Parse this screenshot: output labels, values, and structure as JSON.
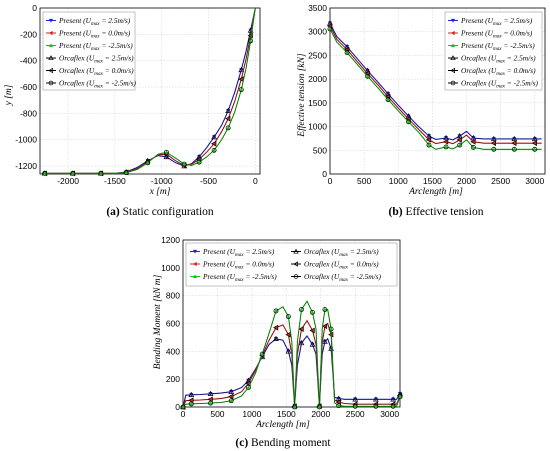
{
  "legend_labels": [
    {
      "pre": "Present (U",
      "sub": "max",
      "post": " = 2.5m/s)",
      "color": "#2222d8",
      "marker": "tri-down"
    },
    {
      "pre": "Present (U",
      "sub": "max",
      "post": " = 0.0m/s)",
      "color": "#d42020",
      "marker": "tri-left"
    },
    {
      "pre": "Present (U",
      "sub": "max",
      "post": " = -2.5m/s)",
      "color": "#18c018",
      "marker": "tri-up"
    },
    {
      "pre": "Orcaflex (U",
      "sub": "max",
      "post": " = 2.5m/s)",
      "color": "#000000",
      "marker": "tri-up-open"
    },
    {
      "pre": "Orcaflex (U",
      "sub": "max",
      "post": " = 0.0m/s)",
      "color": "#000000",
      "marker": "tri-left-open"
    },
    {
      "pre": "Orcaflex (U",
      "sub": "max",
      "post": " = -2.5m/s)",
      "color": "#000000",
      "marker": "circle-open"
    }
  ],
  "chart_data": [
    {
      "type": "line",
      "caption_letter": "(a)",
      "caption_text": " Static configuration",
      "xlabel": "x [m]",
      "ylabel": "y [m]",
      "xlim": [
        -2300,
        50
      ],
      "ylim": [
        -1260,
        0
      ],
      "xticks": [
        -2000,
        -1500,
        -1000,
        -500,
        0
      ],
      "yticks": [
        0,
        -200,
        -400,
        -600,
        -800,
        -1000,
        -1200
      ],
      "grid": true,
      "legend_position": "top-left",
      "series": [
        {
          "x": [
            -2250,
            -2100,
            -1950,
            -1800,
            -1650,
            -1500,
            -1380,
            -1260,
            -1150,
            -1040,
            -950,
            -850,
            -760,
            -680,
            -600,
            -520,
            -440,
            -360,
            -290,
            -220,
            -150,
            -100,
            -50,
            0
          ],
          "y": [
            -1255,
            -1255,
            -1255,
            -1255,
            -1255,
            -1255,
            -1245,
            -1210,
            -1160,
            -1120,
            -1130,
            -1175,
            -1200,
            -1180,
            -1130,
            -1060,
            -980,
            -890,
            -780,
            -640,
            -470,
            -330,
            -170,
            0
          ]
        },
        {
          "x": [
            -2250,
            -2100,
            -1950,
            -1800,
            -1650,
            -1500,
            -1380,
            -1260,
            -1150,
            -1040,
            -950,
            -850,
            -760,
            -680,
            -600,
            -520,
            -440,
            -360,
            -290,
            -220,
            -150,
            -100,
            -50,
            0
          ],
          "y": [
            -1255,
            -1255,
            -1255,
            -1255,
            -1255,
            -1255,
            -1248,
            -1218,
            -1168,
            -1115,
            -1110,
            -1160,
            -1195,
            -1185,
            -1150,
            -1095,
            -1030,
            -940,
            -840,
            -710,
            -540,
            -390,
            -210,
            0
          ]
        },
        {
          "x": [
            -2250,
            -2100,
            -1950,
            -1800,
            -1650,
            -1500,
            -1380,
            -1260,
            -1150,
            -1040,
            -950,
            -850,
            -760,
            -680,
            -600,
            -520,
            -440,
            -360,
            -290,
            -220,
            -150,
            -100,
            -50,
            0
          ],
          "y": [
            -1255,
            -1255,
            -1255,
            -1255,
            -1255,
            -1255,
            -1250,
            -1225,
            -1175,
            -1110,
            -1095,
            -1140,
            -1185,
            -1195,
            -1170,
            -1130,
            -1080,
            -1000,
            -910,
            -790,
            -620,
            -460,
            -250,
            0
          ]
        }
      ]
    },
    {
      "type": "line",
      "caption_letter": "(b)",
      "caption_text": " Effective tension",
      "xlabel": "Arclength [m]",
      "ylabel": "Effective tension [kN]",
      "xlim": [
        0,
        3150
      ],
      "ylim": [
        0,
        3500
      ],
      "xticks": [
        0,
        500,
        1000,
        1500,
        2000,
        2500,
        3000
      ],
      "yticks": [
        0,
        500,
        1000,
        1500,
        2000,
        2500,
        3000,
        3500
      ],
      "grid": true,
      "legend_position": "top-right",
      "series": [
        {
          "x": [
            0,
            100,
            250,
            400,
            550,
            700,
            850,
            1000,
            1150,
            1300,
            1450,
            1550,
            1700,
            1800,
            1900,
            2000,
            2100,
            2250,
            2400,
            2550,
            2700,
            2850,
            3000,
            3100
          ],
          "y": [
            3180,
            2900,
            2680,
            2430,
            2180,
            1940,
            1690,
            1450,
            1220,
            1000,
            800,
            730,
            760,
            720,
            800,
            900,
            760,
            740,
            740,
            740,
            740,
            740,
            740,
            740
          ]
        },
        {
          "x": [
            0,
            100,
            250,
            400,
            550,
            700,
            850,
            1000,
            1150,
            1300,
            1450,
            1550,
            1700,
            1800,
            1900,
            2000,
            2100,
            2250,
            2400,
            2550,
            2700,
            2850,
            3000,
            3100
          ],
          "y": [
            3120,
            2840,
            2620,
            2370,
            2120,
            1880,
            1630,
            1390,
            1160,
            940,
            720,
            640,
            680,
            640,
            720,
            820,
            680,
            650,
            650,
            650,
            650,
            650,
            650,
            650
          ]
        },
        {
          "x": [
            0,
            100,
            250,
            400,
            550,
            700,
            850,
            1000,
            1150,
            1300,
            1450,
            1550,
            1700,
            1800,
            1900,
            2000,
            2100,
            2250,
            2400,
            2550,
            2700,
            2850,
            3000,
            3100
          ],
          "y": [
            3060,
            2780,
            2560,
            2310,
            2060,
            1820,
            1570,
            1330,
            1100,
            880,
            610,
            520,
            570,
            530,
            610,
            720,
            560,
            520,
            520,
            520,
            520,
            520,
            520,
            520
          ]
        }
      ]
    },
    {
      "type": "line",
      "caption_letter": "(c)",
      "caption_text": " Bending moment",
      "xlabel": "Arclength [m]",
      "ylabel": "Bending Moment [kN m]",
      "xlim": [
        0,
        3150
      ],
      "ylim": [
        0,
        1200
      ],
      "xticks": [
        0,
        500,
        1000,
        1500,
        2000,
        2500,
        3000
      ],
      "yticks": [
        0,
        200,
        400,
        600,
        800,
        1000,
        1200
      ],
      "grid": true,
      "legend_position": "top",
      "series": [
        {
          "x": [
            0,
            40,
            120,
            250,
            400,
            550,
            700,
            850,
            950,
            1050,
            1150,
            1250,
            1350,
            1450,
            1530,
            1580,
            1620,
            1660,
            1720,
            1800,
            1880,
            1930,
            1980,
            2020,
            2060,
            2100,
            2150,
            2200,
            2260,
            2350,
            2500,
            2650,
            2800,
            2950,
            3050,
            3100,
            3150
          ],
          "y": [
            0,
            85,
            88,
            90,
            95,
            100,
            110,
            140,
            190,
            270,
            360,
            450,
            490,
            480,
            400,
            300,
            10,
            300,
            460,
            510,
            450,
            380,
            10,
            380,
            470,
            490,
            420,
            70,
            60,
            55,
            55,
            55,
            55,
            55,
            55,
            55,
            95
          ]
        },
        {
          "x": [
            0,
            40,
            120,
            250,
            400,
            550,
            700,
            850,
            950,
            1050,
            1150,
            1250,
            1350,
            1450,
            1530,
            1580,
            1620,
            1660,
            1720,
            1800,
            1880,
            1930,
            1980,
            2020,
            2060,
            2100,
            2150,
            2200,
            2260,
            2350,
            2500,
            2650,
            2800,
            2950,
            3050,
            3100,
            3150
          ],
          "y": [
            0,
            45,
            48,
            50,
            55,
            60,
            75,
            110,
            170,
            260,
            370,
            480,
            570,
            590,
            520,
            380,
            5,
            380,
            560,
            620,
            550,
            450,
            5,
            460,
            580,
            600,
            520,
            50,
            35,
            25,
            20,
            20,
            20,
            20,
            20,
            20,
            80
          ]
        },
        {
          "x": [
            0,
            40,
            120,
            250,
            400,
            550,
            700,
            850,
            950,
            1050,
            1150,
            1250,
            1350,
            1450,
            1530,
            1580,
            1620,
            1660,
            1720,
            1800,
            1880,
            1930,
            1980,
            2020,
            2060,
            2100,
            2150,
            2200,
            2260,
            2350,
            2500,
            2650,
            2800,
            2950,
            3050,
            3100,
            3150
          ],
          "y": [
            0,
            20,
            22,
            25,
            28,
            32,
            45,
            80,
            140,
            240,
            380,
            530,
            690,
            720,
            650,
            470,
            0,
            470,
            700,
            760,
            680,
            560,
            0,
            560,
            700,
            700,
            560,
            30,
            10,
            5,
            5,
            5,
            5,
            5,
            5,
            5,
            75
          ]
        }
      ]
    }
  ]
}
